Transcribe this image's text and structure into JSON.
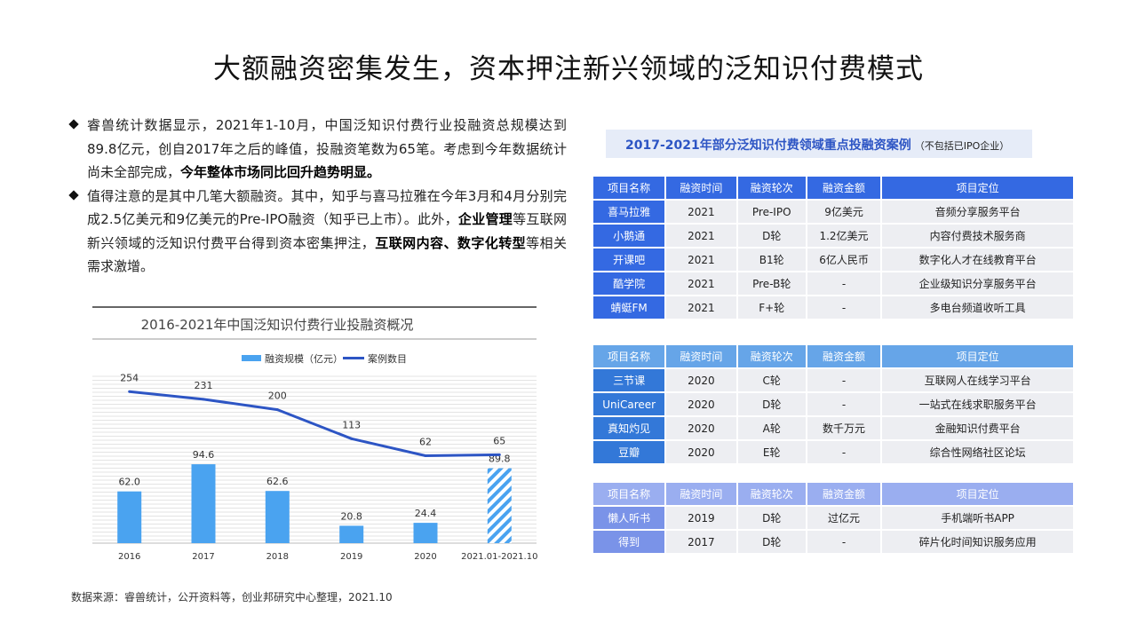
{
  "page": {
    "title": "大额融资密集发生，资本押注新兴领域的泛知识付费模式",
    "source": "数据来源：睿兽统计，公开资料等，创业邦研究中心整理，2021.10"
  },
  "bullets": [
    {
      "parts": [
        {
          "text": "睿兽统计数据显示，2021年1-10月，中国泛知识付费行业投融资总规模达到89.8亿元，创自2017年之后的峰值，投融资笔数为65笔。考虑到今年数据统计尚未全部完成，",
          "bold": false
        },
        {
          "text": "今年整体市场同比回升趋势明显。",
          "bold": true
        }
      ]
    },
    {
      "parts": [
        {
          "text": "值得注意的是其中几笔大额融资。其中，知乎与喜马拉雅在今年3月和4月分别完成2.5亿美元和9亿美元的Pre-IPO融资（知乎已上市）。此外，",
          "bold": false
        },
        {
          "text": "企业管理",
          "bold": true
        },
        {
          "text": "等互联网新兴领域的泛知识付费平台得到资本密集押注，",
          "bold": false
        },
        {
          "text": "互联网内容、数字化转型",
          "bold": true
        },
        {
          "text": "等相关需求激增。",
          "bold": false
        }
      ]
    }
  ],
  "chart_data": {
    "type": "bar",
    "title": "2016-2021年中国泛知识付费行业投融资概况",
    "categories": [
      "2016",
      "2017",
      "2018",
      "2019",
      "2020",
      "2021.01-2021.10"
    ],
    "series": [
      {
        "name": "融资规模（亿元）",
        "type": "bar",
        "values": [
          62.0,
          94.6,
          62.6,
          20.8,
          24.4,
          89.8
        ],
        "labels": [
          "62.0",
          "94.6",
          "62.6",
          "20.8",
          "24.4",
          "89.8"
        ],
        "color": "#4aa3f0",
        "last_hatched": true
      },
      {
        "name": "案例数目",
        "type": "line",
        "values": [
          254,
          231,
          200,
          113,
          62,
          65
        ],
        "labels": [
          "254",
          "231",
          "200",
          "113",
          "62",
          "65"
        ],
        "color": "#2d55c4"
      }
    ],
    "bar_ylim": [
      0,
      200
    ],
    "line_ylim": [
      -200,
      300
    ],
    "grid": true,
    "legend": "top-center"
  },
  "tables": {
    "heading": "2017-2021年部分泛知识付费领域重点投融资案例",
    "heading_note": "（不包括已IPO企业）",
    "columns": [
      "项目名称",
      "融资时间",
      "融资轮次",
      "融资金额",
      "项目定位"
    ],
    "groups": [
      {
        "rows": [
          [
            "喜马拉雅",
            "2021",
            "Pre-IPO",
            "9亿美元",
            "音频分享服务平台"
          ],
          [
            "小鹅通",
            "2021",
            "D轮",
            "1.2亿美元",
            "内容付费技术服务商"
          ],
          [
            "开课吧",
            "2021",
            "B1轮",
            "6亿人民币",
            "数字化人才在线教育平台"
          ],
          [
            "酷学院",
            "2021",
            "Pre-B轮",
            "-",
            "企业级知识分享服务平台"
          ],
          [
            "蜻蜓FM",
            "2021",
            "F+轮",
            "-",
            "多电台频道收听工具"
          ]
        ]
      },
      {
        "rows": [
          [
            "三节课",
            "2020",
            "C轮",
            "-",
            "互联网人在线学习平台"
          ],
          [
            "UniCareer",
            "2020",
            "D轮",
            "-",
            "一站式在线求职服务平台"
          ],
          [
            "真知灼见",
            "2020",
            "A轮",
            "数千万元",
            "金融知识付费平台"
          ],
          [
            "豆瓣",
            "2020",
            "E轮",
            "-",
            "综合性网络社区论坛"
          ]
        ]
      },
      {
        "rows": [
          [
            "懒人听书",
            "2019",
            "D轮",
            "过亿元",
            "手机端听书APP"
          ],
          [
            "得到",
            "2017",
            "D轮",
            "-",
            "碎片化时间知识服务应用"
          ]
        ]
      }
    ]
  }
}
